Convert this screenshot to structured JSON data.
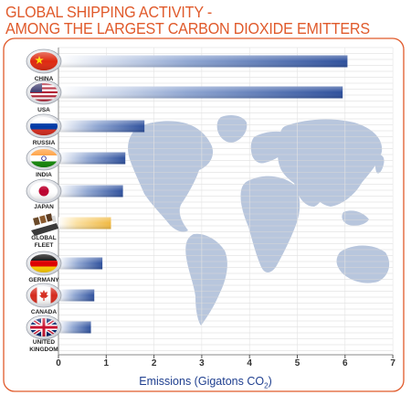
{
  "chart_data": {
    "type": "bar",
    "orientation": "horizontal",
    "title_lines": [
      "GLOBAL SHIPPING ACTIVITY -",
      "AMONG THE LARGEST CARBON DIOXIDE EMITTERS"
    ],
    "xlabel": "Emissions (Gigatons CO",
    "xlabel_subscript": "2",
    "xlabel_suffix": ")",
    "xlim": [
      0,
      7
    ],
    "xticks": [
      "0",
      "1",
      "2",
      "3",
      "4",
      "5",
      "6",
      "7"
    ],
    "grid": true,
    "categories": [
      {
        "lines": [
          "CHINA"
        ],
        "flag": "china-flag-icon",
        "highlight": false
      },
      {
        "lines": [
          "USA"
        ],
        "flag": "usa-flag-icon",
        "highlight": false
      },
      {
        "lines": [
          "RUSSIA"
        ],
        "flag": "russia-flag-icon",
        "highlight": false
      },
      {
        "lines": [
          "INDIA"
        ],
        "flag": "india-flag-icon",
        "highlight": false
      },
      {
        "lines": [
          "JAPAN"
        ],
        "flag": "japan-flag-icon",
        "highlight": false
      },
      {
        "lines": [
          "GLOBAL",
          "FLEET"
        ],
        "flag": "cargo-ship-icon",
        "highlight": true
      },
      {
        "lines": [
          "GERMANY"
        ],
        "flag": "germany-flag-icon",
        "highlight": false
      },
      {
        "lines": [
          "CANADA"
        ],
        "flag": "canada-flag-icon",
        "highlight": false
      },
      {
        "lines": [
          "UNITED",
          "KINGDOM"
        ],
        "flag": "uk-flag-icon",
        "highlight": false
      }
    ],
    "values": [
      6.05,
      5.95,
      1.8,
      1.4,
      1.35,
      1.1,
      0.92,
      0.75,
      0.68
    ],
    "colors": {
      "bar": "#2d4f9c",
      "highlight_bar": "#f0b840",
      "title": "#e05a2b",
      "frame": "#e05a2b",
      "axis_text": "#1f3f8f",
      "map": "#b8c6dd",
      "grid": "#d8d8d8"
    }
  }
}
